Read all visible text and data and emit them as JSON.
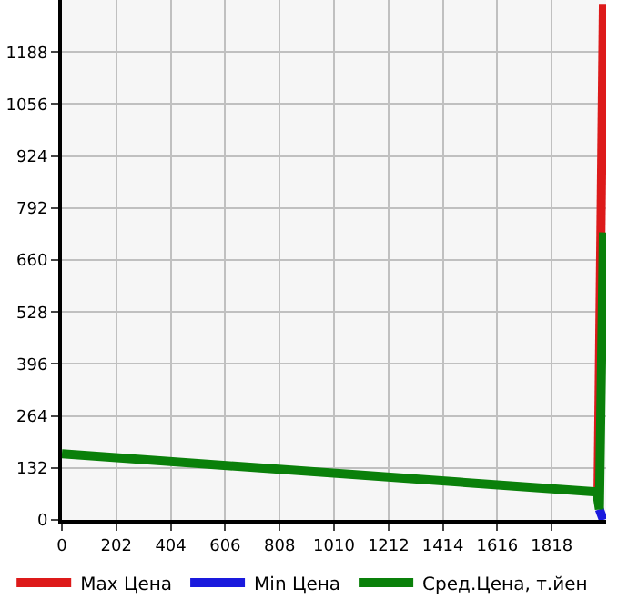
{
  "chart_data": {
    "type": "line",
    "series": [
      {
        "name": "Max Цена",
        "color": "#dd1a1a",
        "x": [
          1990,
          2010
        ],
        "values": [
          71,
          1310
        ]
      },
      {
        "name": "Min Цена",
        "color": "#1a1add",
        "x": [
          1995,
          2010
        ],
        "values": [
          27,
          0
        ]
      },
      {
        "name": "Сред.Цена, т.йен",
        "color": "#0a800a",
        "x": [
          0,
          1985,
          1995,
          2010
        ],
        "values": [
          168,
          71,
          27,
          730
        ]
      }
    ],
    "xlim": [
      0,
      2020
    ],
    "xticks": [
      0,
      202,
      404,
      606,
      808,
      1010,
      1212,
      1414,
      1616,
      1818
    ],
    "ylim": [
      0,
      1320
    ],
    "yticks": [
      0,
      132,
      264,
      396,
      528,
      660,
      792,
      924,
      1056,
      1188
    ],
    "grid": true,
    "legend": "bottom",
    "marker": "none",
    "line_style": "solid"
  }
}
